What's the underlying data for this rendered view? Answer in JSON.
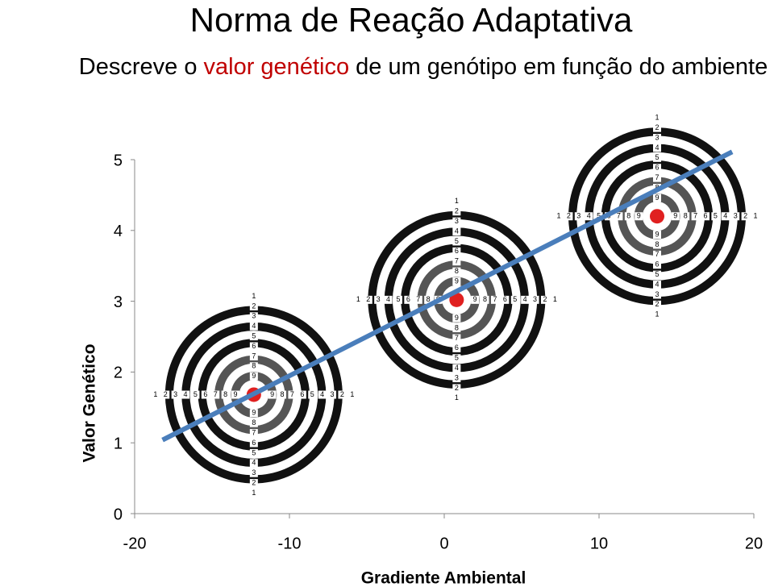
{
  "chart_data": {
    "type": "line",
    "title": "Norma de Reação Adaptativa",
    "subtitle": [
      "Descreve o",
      "valor genético",
      "de um genótipo em função do ambiente"
    ],
    "x_label": "Gradiente Ambiental",
    "y_label": "Valor Genético",
    "xlim": [
      -20,
      20
    ],
    "xticks": [
      -20,
      -10,
      0,
      10,
      20
    ],
    "ylim": [
      0,
      5
    ],
    "yticks": [
      0,
      1,
      2,
      3,
      4,
      5
    ],
    "x": [
      -18.2,
      18.6
    ],
    "values": [
      1.04,
      5.11
    ],
    "color": "#4a7ebb",
    "target_x": [
      -12.3,
      0.8,
      13.75
    ],
    "target_y": [
      1.68,
      3.02,
      4.2
    ],
    "target_color": "#e02020",
    "ring_numbers": [
      1,
      2,
      3,
      4,
      5,
      6,
      7,
      8,
      9
    ]
  }
}
